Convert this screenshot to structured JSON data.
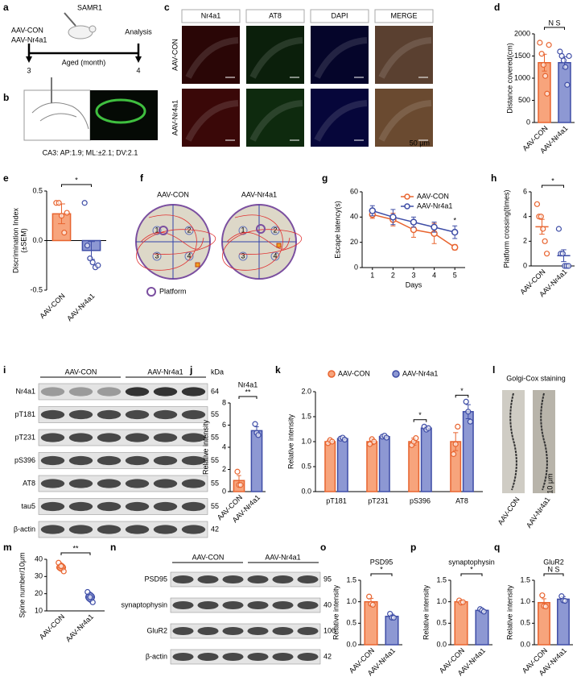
{
  "schematic": {
    "panel": "a",
    "strain": "SAMR1",
    "groups": [
      "AAV-CON",
      "AAV-Nr4a1"
    ],
    "start": "3",
    "end": "4",
    "axis_label": "Aged (month)",
    "endpoint": "Analysis"
  },
  "slice": {
    "panel": "b",
    "caption": "CA3: AP:1.9;  ML:±2.1;  DV:2.1"
  },
  "micrographs": {
    "panel": "c",
    "columns": [
      "Nr4a1",
      "AT8",
      "DAPI",
      "MERGE"
    ],
    "rows": [
      "AAV-CON",
      "AAV-Nr4a1"
    ],
    "scale": "50 μm"
  },
  "maze": {
    "panel": "f",
    "titles": [
      "AAV-CON",
      "AAV-Nr4a1"
    ],
    "quadrants": [
      "1",
      "2",
      "3",
      "4"
    ],
    "legend": "Platform"
  },
  "blot_i": {
    "panel": "i",
    "groups": [
      "AAV-CON",
      "AAV-Nr4a1"
    ],
    "unit": "kDa",
    "rows": [
      "Nr4a1",
      "pT181",
      "pT231",
      "pS396",
      "AT8",
      "tau5",
      "β-actin"
    ],
    "sizes": [
      "64",
      "55",
      "55",
      "55",
      "55",
      "55",
      "42"
    ]
  },
  "golgi": {
    "panel": "l",
    "title": "Golgi-Cox staining",
    "groups": [
      "AAV-CON",
      "AAV-Nr4a1"
    ],
    "scale": "10 μm"
  },
  "blot_n": {
    "panel": "n",
    "groups": [
      "AAV-CON",
      "AAV-Nr4a1"
    ],
    "rows": [
      "PSD95",
      "synaptophysin",
      "GluR2",
      "β-actin"
    ],
    "sizes": [
      "95",
      "40",
      "100",
      "42"
    ]
  },
  "chart_data": [
    {
      "panel": "d",
      "type": "bar",
      "ylabel": "Distance covered(cm)",
      "categories": [
        "AAV-CON",
        "AAV-Nr4a1"
      ],
      "values": [
        1350,
        1350
      ],
      "errors": [
        190,
        130
      ],
      "points": [
        [
          1800,
          1550,
          1300,
          1050,
          650,
          1750
        ],
        [
          1600,
          1500,
          1400,
          1250,
          850,
          1500
        ]
      ],
      "ylim": [
        0,
        2000
      ],
      "yticks": [
        0,
        500,
        1000,
        1500,
        2000
      ],
      "colors": [
        "#f7a47c",
        "#8d98d3"
      ],
      "edge_colors": [
        "#e8642f",
        "#3e4da6"
      ],
      "annotation": "N S"
    },
    {
      "panel": "e",
      "type": "bar",
      "ylabel": [
        "Discrimination Index",
        "(±SEM)"
      ],
      "categories": [
        "AAV-CON",
        "AAV-Nr4a1"
      ],
      "values": [
        0.27,
        -0.1
      ],
      "errors": [
        0.1,
        0.09
      ],
      "points": [
        [
          0.38,
          0.38,
          0.25,
          0.08,
          0.28
        ],
        [
          0.38,
          -0.05,
          -0.18,
          -0.22,
          -0.27,
          -0.25
        ]
      ],
      "ylim": [
        -0.5,
        0.5
      ],
      "yticks": [
        -0.5,
        {
          "value": 0,
          "label": "0.0"
        },
        0.5
      ],
      "colors": [
        "#f7a47c",
        "#8d98d3"
      ],
      "edge_colors": [
        "#e8642f",
        "#3e4da6"
      ],
      "annotation": "*"
    },
    {
      "panel": "g",
      "type": "line",
      "ylabel": "Escape latency(s)",
      "xlabel": "Days",
      "x": [
        1,
        2,
        3,
        4,
        5
      ],
      "xlim": [
        0.5,
        5.5
      ],
      "xticks": [
        1,
        2,
        3,
        4,
        5
      ],
      "ylim": [
        0,
        60
      ],
      "yticks": [
        0,
        20,
        40,
        60
      ],
      "series": [
        {
          "name": "AAV-CON",
          "color": "#e8642f",
          "values": [
            42,
            38,
            30,
            27,
            16
          ],
          "errors": [
            3,
            5,
            6,
            8,
            2
          ]
        },
        {
          "name": "AAV-Nr4a1",
          "color": "#3e4da6",
          "values": [
            45,
            40,
            36,
            32,
            28
          ],
          "errors": [
            4,
            6,
            4,
            4,
            5
          ]
        }
      ],
      "annotations": [
        null,
        null,
        null,
        null,
        "*"
      ],
      "legend": "upper right"
    },
    {
      "panel": "h",
      "type": "dot",
      "ylabel": "Platform crossing(times)",
      "categories": [
        "AAV-CON",
        "AAV-Nr4a1"
      ],
      "values": [
        3.17,
        0.83
      ],
      "errors": [
        0.6,
        0.48
      ],
      "points": [
        [
          5,
          4,
          4,
          3,
          2,
          1
        ],
        [
          3,
          1,
          1,
          0,
          0,
          0
        ]
      ],
      "ylim": [
        0,
        6
      ],
      "yticks": [
        0,
        2,
        4,
        6
      ],
      "colors": [
        "#f7a47c",
        "#8d98d3"
      ],
      "edge_colors": [
        "#e8642f",
        "#3e4da6"
      ],
      "annotation": "*"
    },
    {
      "panel": "j",
      "type": "bar",
      "title": "Nr4a1",
      "ylabel": "Relative intensity",
      "categories": [
        "AAV-CON",
        "AAV-Nr4a1"
      ],
      "values": [
        1.0,
        5.5
      ],
      "errors": [
        0.45,
        0.35
      ],
      "points": [
        [
          1.8,
          0.6,
          0.6
        ],
        [
          6.1,
          5.3,
          5.1
        ]
      ],
      "ylim": [
        0,
        8
      ],
      "yticks": [
        0,
        2,
        4,
        6,
        8
      ],
      "colors": [
        "#f7a47c",
        "#8d98d3"
      ],
      "edge_colors": [
        "#e8642f",
        "#3e4da6"
      ],
      "annotation": "**"
    },
    {
      "panel": "k",
      "type": "grouped_bar",
      "ylabel": "Relative intensity",
      "categories": [
        "pT181",
        "pT231",
        "pS396",
        "AT8"
      ],
      "series": [
        {
          "name": "AAV-CON",
          "color": "#f7a47c",
          "edge_color": "#e8642f",
          "values": [
            1.0,
            1.0,
            1.0,
            1.0
          ],
          "errors": [
            0.04,
            0.06,
            0.07,
            0.18
          ],
          "points": [
            [
              0.97,
              1.03,
              1.0
            ],
            [
              0.95,
              1.05,
              1.0
            ],
            [
              0.93,
              1.0,
              1.07
            ],
            [
              0.75,
              0.95,
              1.3
            ]
          ]
        },
        {
          "name": "AAV-Nr4a1",
          "color": "#8d98d3",
          "edge_color": "#3e4da6",
          "values": [
            1.06,
            1.1,
            1.27,
            1.6
          ],
          "errors": [
            0.02,
            0.02,
            0.04,
            0.14
          ],
          "points": [
            [
              1.06,
              1.08,
              1.04
            ],
            [
              1.1,
              1.12,
              1.08
            ],
            [
              1.3,
              1.24,
              1.27
            ],
            [
              1.8,
              1.6,
              1.4
            ]
          ]
        }
      ],
      "ylim": [
        0,
        2
      ],
      "yticks": [
        {
          "value": 0,
          "label": "0.0"
        },
        0.5,
        {
          "value": 1,
          "label": "1.0"
        },
        1.5,
        {
          "value": 2,
          "label": "2.0"
        }
      ],
      "annotations": [
        null,
        null,
        "*",
        "*"
      ],
      "legend": "top"
    },
    {
      "panel": "m",
      "type": "violin",
      "ylabel": "Spine number/10μm",
      "categories": [
        "AAV-CON",
        "AAV-Nr4a1"
      ],
      "values": [
        35,
        18
      ],
      "points": [
        [
          38,
          36,
          33
        ],
        [
          21,
          18,
          15
        ]
      ],
      "ylim": [
        10,
        40
      ],
      "yticks": [
        10,
        20,
        30,
        40
      ],
      "colors": [
        "#f7a47c",
        "#8d98d3"
      ],
      "edge_colors": [
        "#e8642f",
        "#3e4da6"
      ],
      "annotation": "**"
    },
    {
      "panel": "o",
      "type": "bar",
      "title": "PSD95",
      "ylabel": "Relative intensity",
      "categories": [
        "AAV-CON",
        "AAV-Nr4a1"
      ],
      "values": [
        1.0,
        0.66
      ],
      "errors": [
        0.08,
        0.05
      ],
      "points": [
        [
          1.12,
          0.95,
          0.93
        ],
        [
          0.72,
          0.63,
          0.63
        ]
      ],
      "ylim": [
        0,
        1.5
      ],
      "yticks": [
        {
          "value": 0,
          "label": "0.0"
        },
        0.5,
        {
          "value": 1,
          "label": "1.0"
        },
        1.5
      ],
      "colors": [
        "#f7a47c",
        "#8d98d3"
      ],
      "edge_colors": [
        "#e8642f",
        "#3e4da6"
      ],
      "annotation": "*"
    },
    {
      "panel": "p",
      "type": "bar",
      "title": "synaptophysin",
      "ylabel": "Relative intensity",
      "categories": [
        "AAV-CON",
        "AAV-Nr4a1"
      ],
      "values": [
        1.0,
        0.8
      ],
      "errors": [
        0.03,
        0.03
      ],
      "points": [
        [
          1.03,
          0.98,
          0.99
        ],
        [
          0.83,
          0.8,
          0.77
        ]
      ],
      "ylim": [
        0,
        1.5
      ],
      "yticks": [
        {
          "value": 0,
          "label": "0.0"
        },
        0.5,
        {
          "value": 1,
          "label": "1.0"
        },
        1.5
      ],
      "colors": [
        "#f7a47c",
        "#8d98d3"
      ],
      "edge_colors": [
        "#e8642f",
        "#3e4da6"
      ],
      "annotation": "*"
    },
    {
      "panel": "q",
      "type": "bar",
      "title": "GluR2",
      "ylabel": "Relative intensity",
      "categories": [
        "AAV-CON",
        "AAV-Nr4a1"
      ],
      "values": [
        0.98,
        1.06
      ],
      "errors": [
        0.09,
        0.06
      ],
      "points": [
        [
          1.15,
          0.9,
          0.89
        ],
        [
          1.13,
          1.03,
          1.02
        ]
      ],
      "ylim": [
        0,
        1.5
      ],
      "yticks": [
        {
          "value": 0,
          "label": "0.0"
        },
        0.5,
        {
          "value": 1,
          "label": "1.0"
        },
        1.5
      ],
      "colors": [
        "#f7a47c",
        "#8d98d3"
      ],
      "edge_colors": [
        "#e8642f",
        "#3e4da6"
      ],
      "annotation": "N S"
    }
  ]
}
